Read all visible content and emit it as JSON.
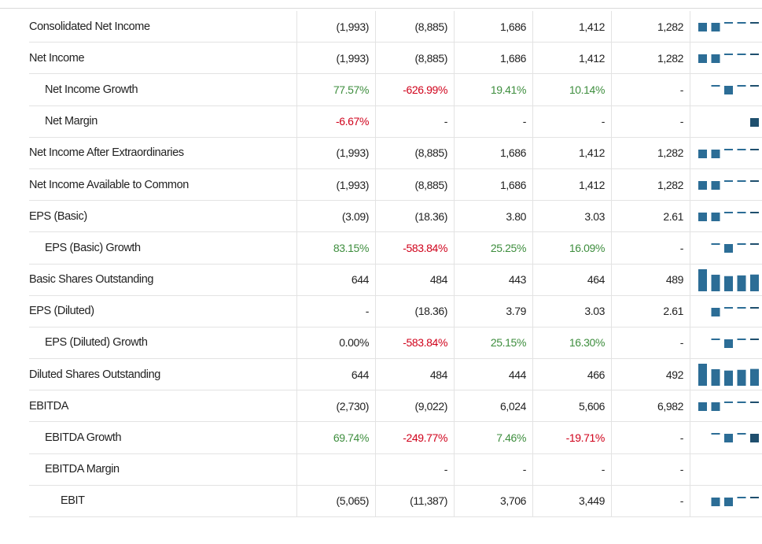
{
  "colors": {
    "bar": "#2c6d96",
    "bar_dark": "#1f4f6e",
    "positive": "#3e8e3e",
    "negative": "#d0021b"
  },
  "rows": [
    {
      "label": "Consolidated Net Income",
      "indent": 0,
      "values": [
        "(1,993)",
        "(8,885)",
        "1,686",
        "1,412",
        "1,282"
      ],
      "tone": [
        "",
        "",
        "",
        "",
        ""
      ],
      "trend": [
        -1993,
        -8885,
        1686,
        1412,
        1282
      ]
    },
    {
      "label": "Net Income",
      "indent": 0,
      "values": [
        "(1,993)",
        "(8,885)",
        "1,686",
        "1,412",
        "1,282"
      ],
      "tone": [
        "",
        "",
        "",
        "",
        ""
      ],
      "trend": [
        -1993,
        -8885,
        1686,
        1412,
        1282
      ]
    },
    {
      "label": "Net Income Growth",
      "indent": 1,
      "values": [
        "77.57%",
        "-626.99%",
        "19.41%",
        "10.14%",
        "-"
      ],
      "tone": [
        "pos",
        "neg",
        "pos",
        "pos",
        ""
      ],
      "trend": [
        77.57,
        -626.99,
        19.41,
        10.14
      ]
    },
    {
      "label": "Net Margin",
      "indent": 1,
      "values": [
        "-6.67%",
        "-",
        "-",
        "-",
        "-"
      ],
      "tone": [
        "neg",
        "",
        "",
        "",
        ""
      ],
      "trend": [
        -6.67
      ]
    },
    {
      "label": "Net Income After Extraordinaries",
      "indent": 0,
      "values": [
        "(1,993)",
        "(8,885)",
        "1,686",
        "1,412",
        "1,282"
      ],
      "tone": [
        "",
        "",
        "",
        "",
        ""
      ],
      "trend": [
        -1993,
        -8885,
        1686,
        1412,
        1282
      ]
    },
    {
      "label": "Net Income Available to Common",
      "indent": 0,
      "values": [
        "(1,993)",
        "(8,885)",
        "1,686",
        "1,412",
        "1,282"
      ],
      "tone": [
        "",
        "",
        "",
        "",
        ""
      ],
      "trend": [
        -1993,
        -8885,
        1686,
        1412,
        1282
      ]
    },
    {
      "label": "EPS (Basic)",
      "indent": 0,
      "values": [
        "(3.09)",
        "(18.36)",
        "3.80",
        "3.03",
        "2.61"
      ],
      "tone": [
        "",
        "",
        "",
        "",
        ""
      ],
      "trend": [
        -3.09,
        -18.36,
        3.8,
        3.03,
        2.61
      ]
    },
    {
      "label": "EPS (Basic) Growth",
      "indent": 1,
      "values": [
        "83.15%",
        "-583.84%",
        "25.25%",
        "16.09%",
        "-"
      ],
      "tone": [
        "pos",
        "neg",
        "pos",
        "pos",
        ""
      ],
      "trend": [
        83.15,
        -583.84,
        25.25,
        16.09
      ]
    },
    {
      "label": "Basic Shares Outstanding",
      "indent": 0,
      "values": [
        "644",
        "484",
        "443",
        "464",
        "489"
      ],
      "tone": [
        "",
        "",
        "",
        "",
        ""
      ],
      "trend": [
        644,
        484,
        443,
        464,
        489
      ]
    },
    {
      "label": "EPS (Diluted)",
      "indent": 0,
      "values": [
        "-",
        "(18.36)",
        "3.79",
        "3.03",
        "2.61"
      ],
      "tone": [
        "",
        "",
        "",
        "",
        ""
      ],
      "trend": [
        -18.36,
        3.79,
        3.03,
        2.61
      ]
    },
    {
      "label": "EPS (Diluted) Growth",
      "indent": 1,
      "values": [
        "0.00%",
        "-583.84%",
        "25.15%",
        "16.30%",
        "-"
      ],
      "tone": [
        "",
        "neg",
        "pos",
        "pos",
        ""
      ],
      "trend": [
        0,
        -583.84,
        25.15,
        16.3
      ]
    },
    {
      "label": "Diluted Shares Outstanding",
      "indent": 0,
      "values": [
        "644",
        "484",
        "444",
        "466",
        "492"
      ],
      "tone": [
        "",
        "",
        "",
        "",
        ""
      ],
      "trend": [
        644,
        484,
        444,
        466,
        492
      ]
    },
    {
      "label": "EBITDA",
      "indent": 0,
      "values": [
        "(2,730)",
        "(9,022)",
        "6,024",
        "5,606",
        "6,982"
      ],
      "tone": [
        "",
        "",
        "",
        "",
        ""
      ],
      "trend": [
        -2730,
        -9022,
        6024,
        5606,
        6982
      ]
    },
    {
      "label": "EBITDA Growth",
      "indent": 1,
      "values": [
        "69.74%",
        "-249.77%",
        "7.46%",
        "-19.71%",
        "-"
      ],
      "tone": [
        "pos",
        "neg",
        "pos",
        "neg",
        ""
      ],
      "trend": [
        69.74,
        -249.77,
        7.46,
        -19.71
      ]
    },
    {
      "label": "EBITDA Margin",
      "indent": 1,
      "values": [
        "",
        "-",
        "-",
        "-",
        "-"
      ],
      "tone": [
        "",
        "",
        "",
        "",
        ""
      ],
      "trend": []
    },
    {
      "label": "EBIT",
      "indent": 2,
      "values": [
        "(5,065)",
        "(11,387)",
        "3,706",
        "3,449",
        "-"
      ],
      "tone": [
        "",
        "",
        "",
        "",
        ""
      ],
      "trend": [
        -5065,
        -11387,
        3706,
        3449
      ]
    }
  ]
}
